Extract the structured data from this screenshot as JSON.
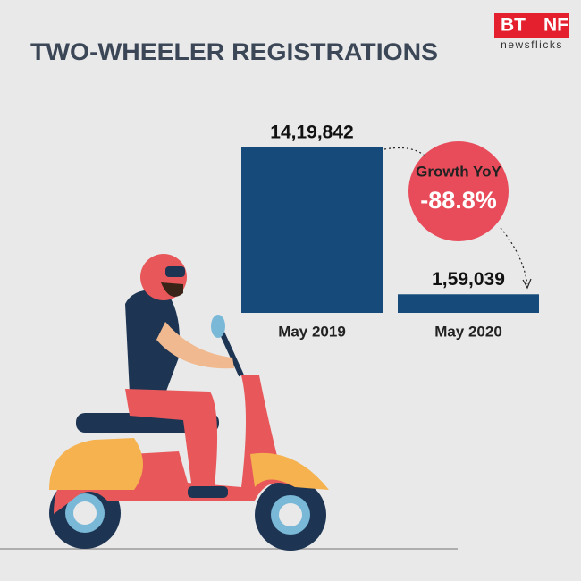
{
  "brand": {
    "left": "BT",
    "right": "NF",
    "tagline": "newsflicks"
  },
  "chart_data": {
    "type": "bar",
    "title": "TWO-WHEELER REGISTRATIONS",
    "categories": [
      "May 2019",
      "May 2020"
    ],
    "values": [
      1419842,
      159039
    ],
    "value_labels": [
      "14,19,842",
      "1,59,039"
    ],
    "color": "#154a7b",
    "annotation": {
      "label": "Growth YoY",
      "text": "-88.8%",
      "color": "#e84c5b"
    }
  }
}
